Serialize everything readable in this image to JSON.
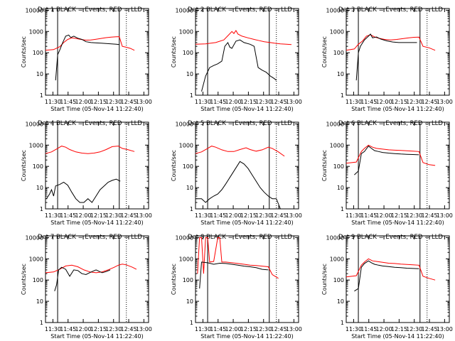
{
  "chart_data": {
    "type": "line",
    "xlabel": "Start Time (05-Nov-14 11:22:40)",
    "ylabel": "Counts/sec",
    "yscale": "log",
    "ylim": [
      1,
      12000
    ],
    "xlim_minutes_since_1122_40": [
      0,
      102
    ],
    "x_ticks": [
      "11:30",
      "11:45",
      "12:00",
      "12:15",
      "12:30",
      "12:45",
      "13:00"
    ],
    "y_ticks": [
      "1",
      "10",
      "100",
      "1000",
      "10000"
    ],
    "series_colors": {
      "events": "#000000",
      "lld": "#ff0000"
    },
    "legend": "title",
    "panels": [
      {
        "title": "Det 1  BLACK = Events, RED = LLD",
        "lld": [
          [
            0,
            130
          ],
          [
            8,
            140
          ],
          [
            14,
            190
          ],
          [
            18,
            300
          ],
          [
            22,
            420
          ],
          [
            26,
            500
          ],
          [
            30,
            470
          ],
          [
            35,
            420
          ],
          [
            40,
            390
          ],
          [
            45,
            400
          ],
          [
            50,
            430
          ],
          [
            55,
            470
          ],
          [
            60,
            510
          ],
          [
            65,
            540
          ],
          [
            70,
            560
          ],
          [
            73,
            570
          ],
          [
            76,
            200
          ],
          [
            80,
            180
          ],
          [
            84,
            160
          ],
          [
            88,
            130
          ]
        ],
        "events": [
          [
            10,
            5
          ],
          [
            12,
            80
          ],
          [
            14,
            130
          ],
          [
            17,
            300
          ],
          [
            20,
            600
          ],
          [
            23,
            680
          ],
          [
            25,
            520
          ],
          [
            28,
            600
          ],
          [
            32,
            480
          ],
          [
            36,
            420
          ],
          [
            40,
            330
          ],
          [
            45,
            300
          ],
          [
            50,
            290
          ],
          [
            55,
            280
          ],
          [
            60,
            270
          ],
          [
            65,
            260
          ],
          [
            70,
            250
          ],
          [
            73,
            240
          ]
        ]
      },
      {
        "title": "Det 2  BLACK = Events, RED = LLD",
        "lld": [
          [
            0,
            250
          ],
          [
            10,
            260
          ],
          [
            20,
            300
          ],
          [
            28,
            400
          ],
          [
            33,
            700
          ],
          [
            36,
            1000
          ],
          [
            38,
            800
          ],
          [
            40,
            1100
          ],
          [
            42,
            750
          ],
          [
            46,
            600
          ],
          [
            52,
            500
          ],
          [
            58,
            420
          ],
          [
            62,
            380
          ],
          [
            68,
            330
          ],
          [
            74,
            300
          ],
          [
            78,
            280
          ],
          [
            84,
            260
          ],
          [
            90,
            250
          ],
          [
            95,
            240
          ]
        ],
        "events": [
          [
            6,
            1.5
          ],
          [
            10,
            8
          ],
          [
            14,
            20
          ],
          [
            18,
            25
          ],
          [
            22,
            30
          ],
          [
            26,
            40
          ],
          [
            29,
            200
          ],
          [
            32,
            300
          ],
          [
            34,
            180
          ],
          [
            36,
            160
          ],
          [
            40,
            350
          ],
          [
            44,
            400
          ],
          [
            48,
            300
          ],
          [
            54,
            250
          ],
          [
            58,
            200
          ],
          [
            62,
            20
          ],
          [
            66,
            15
          ],
          [
            70,
            12
          ],
          [
            74,
            8
          ],
          [
            78,
            6
          ],
          [
            80,
            5
          ]
        ]
      },
      {
        "title": "Det 3  BLACK = Events, RED = LLD",
        "lld": [
          [
            0,
            130
          ],
          [
            8,
            150
          ],
          [
            12,
            250
          ],
          [
            16,
            350
          ],
          [
            20,
            600
          ],
          [
            24,
            700
          ],
          [
            28,
            550
          ],
          [
            32,
            480
          ],
          [
            38,
            420
          ],
          [
            44,
            400
          ],
          [
            50,
            420
          ],
          [
            56,
            460
          ],
          [
            62,
            500
          ],
          [
            67,
            530
          ],
          [
            72,
            540
          ],
          [
            76,
            200
          ],
          [
            82,
            170
          ],
          [
            88,
            130
          ]
        ],
        "events": [
          [
            10,
            5
          ],
          [
            12,
            100
          ],
          [
            14,
            200
          ],
          [
            18,
            400
          ],
          [
            22,
            600
          ],
          [
            24,
            750
          ],
          [
            26,
            500
          ],
          [
            30,
            550
          ],
          [
            34,
            440
          ],
          [
            40,
            360
          ],
          [
            46,
            320
          ],
          [
            52,
            300
          ],
          [
            58,
            300
          ],
          [
            64,
            300
          ],
          [
            70,
            300
          ]
        ]
      },
      {
        "title": "Det 4  BLACK = Events, RED = LLD",
        "lld": [
          [
            0,
            400
          ],
          [
            6,
            480
          ],
          [
            12,
            700
          ],
          [
            16,
            900
          ],
          [
            20,
            800
          ],
          [
            24,
            620
          ],
          [
            30,
            480
          ],
          [
            36,
            420
          ],
          [
            42,
            400
          ],
          [
            48,
            420
          ],
          [
            54,
            480
          ],
          [
            60,
            620
          ],
          [
            66,
            850
          ],
          [
            72,
            900
          ],
          [
            76,
            700
          ],
          [
            82,
            600
          ],
          [
            88,
            500
          ]
        ],
        "events": [
          [
            1,
            3
          ],
          [
            4,
            5
          ],
          [
            6,
            8
          ],
          [
            8,
            4
          ],
          [
            10,
            12
          ],
          [
            14,
            14
          ],
          [
            18,
            18
          ],
          [
            22,
            13
          ],
          [
            26,
            6
          ],
          [
            30,
            3
          ],
          [
            34,
            2
          ],
          [
            38,
            2
          ],
          [
            42,
            3
          ],
          [
            46,
            2
          ],
          [
            50,
            4
          ],
          [
            54,
            8
          ],
          [
            58,
            12
          ],
          [
            62,
            18
          ],
          [
            66,
            22
          ],
          [
            70,
            25
          ],
          [
            74,
            20
          ]
        ]
      },
      {
        "title": "Det 5  BLACK = Events, RED = LLD",
        "lld": [
          [
            0,
            400
          ],
          [
            6,
            480
          ],
          [
            12,
            700
          ],
          [
            16,
            900
          ],
          [
            20,
            800
          ],
          [
            26,
            600
          ],
          [
            32,
            500
          ],
          [
            38,
            500
          ],
          [
            44,
            620
          ],
          [
            50,
            750
          ],
          [
            54,
            620
          ],
          [
            60,
            520
          ],
          [
            66,
            600
          ],
          [
            72,
            800
          ],
          [
            76,
            700
          ],
          [
            82,
            480
          ],
          [
            88,
            300
          ]
        ],
        "events": [
          [
            1,
            3
          ],
          [
            6,
            3
          ],
          [
            10,
            2
          ],
          [
            14,
            3
          ],
          [
            18,
            4
          ],
          [
            22,
            5
          ],
          [
            26,
            8
          ],
          [
            30,
            15
          ],
          [
            34,
            30
          ],
          [
            38,
            60
          ],
          [
            42,
            120
          ],
          [
            44,
            170
          ],
          [
            48,
            130
          ],
          [
            52,
            80
          ],
          [
            56,
            40
          ],
          [
            60,
            20
          ],
          [
            64,
            10
          ],
          [
            68,
            6
          ],
          [
            72,
            4
          ],
          [
            76,
            3
          ],
          [
            80,
            3
          ],
          [
            84,
            1
          ]
        ]
      },
      {
        "title": "Det 6  BLACK = Events, RED = LLD",
        "lld": [
          [
            0,
            140
          ],
          [
            10,
            160
          ],
          [
            15,
            500
          ],
          [
            18,
            700
          ],
          [
            22,
            1000
          ],
          [
            26,
            800
          ],
          [
            30,
            700
          ],
          [
            36,
            650
          ],
          [
            42,
            600
          ],
          [
            48,
            580
          ],
          [
            54,
            560
          ],
          [
            60,
            540
          ],
          [
            66,
            520
          ],
          [
            72,
            500
          ],
          [
            76,
            150
          ],
          [
            82,
            120
          ],
          [
            88,
            110
          ]
        ],
        "events": [
          [
            8,
            40
          ],
          [
            12,
            60
          ],
          [
            15,
            400
          ],
          [
            18,
            500
          ],
          [
            22,
            900
          ],
          [
            25,
            700
          ],
          [
            28,
            550
          ],
          [
            32,
            500
          ],
          [
            36,
            450
          ],
          [
            42,
            420
          ],
          [
            48,
            400
          ],
          [
            54,
            380
          ],
          [
            60,
            370
          ],
          [
            66,
            360
          ],
          [
            72,
            350
          ]
        ]
      },
      {
        "title": "Det 7  BLACK = Events, RED = LLD",
        "lld": [
          [
            0,
            220
          ],
          [
            8,
            240
          ],
          [
            14,
            320
          ],
          [
            20,
            460
          ],
          [
            26,
            500
          ],
          [
            32,
            420
          ],
          [
            38,
            300
          ],
          [
            44,
            240
          ],
          [
            50,
            220
          ],
          [
            56,
            240
          ],
          [
            62,
            300
          ],
          [
            68,
            400
          ],
          [
            72,
            500
          ],
          [
            76,
            560
          ],
          [
            80,
            520
          ],
          [
            86,
            400
          ],
          [
            90,
            320
          ]
        ],
        "events": [
          [
            9,
            30
          ],
          [
            11,
            60
          ],
          [
            13,
            300
          ],
          [
            16,
            400
          ],
          [
            20,
            320
          ],
          [
            24,
            150
          ],
          [
            28,
            300
          ],
          [
            32,
            280
          ],
          [
            36,
            200
          ],
          [
            40,
            180
          ],
          [
            46,
            250
          ],
          [
            50,
            300
          ],
          [
            56,
            220
          ],
          [
            60,
            250
          ],
          [
            64,
            300
          ]
        ]
      },
      {
        "title": "Det 8  BLACK = Events, RED = LLD",
        "lld": [
          [
            2,
            200
          ],
          [
            4,
            10000
          ],
          [
            6,
            10000
          ],
          [
            8,
            200
          ],
          [
            10,
            10000
          ],
          [
            12,
            10000
          ],
          [
            14,
            700
          ],
          [
            18,
            750
          ],
          [
            22,
            10000
          ],
          [
            24,
            10000
          ],
          [
            26,
            700
          ],
          [
            30,
            700
          ],
          [
            36,
            650
          ],
          [
            42,
            600
          ],
          [
            48,
            550
          ],
          [
            54,
            500
          ],
          [
            60,
            480
          ],
          [
            66,
            450
          ],
          [
            72,
            420
          ],
          [
            76,
            180
          ],
          [
            82,
            120
          ]
        ],
        "events": [
          [
            4,
            40
          ],
          [
            6,
            700
          ],
          [
            12,
            650
          ],
          [
            18,
            550
          ],
          [
            24,
            620
          ],
          [
            30,
            600
          ],
          [
            36,
            550
          ],
          [
            42,
            500
          ],
          [
            48,
            450
          ],
          [
            54,
            420
          ],
          [
            60,
            380
          ],
          [
            66,
            320
          ],
          [
            72,
            300
          ]
        ]
      },
      {
        "title": "Det 9  BLACK = Events, RED = LLD",
        "lld": [
          [
            0,
            140
          ],
          [
            10,
            160
          ],
          [
            15,
            500
          ],
          [
            18,
            700
          ],
          [
            22,
            1000
          ],
          [
            26,
            800
          ],
          [
            30,
            750
          ],
          [
            36,
            680
          ],
          [
            42,
            620
          ],
          [
            48,
            600
          ],
          [
            54,
            560
          ],
          [
            60,
            540
          ],
          [
            66,
            520
          ],
          [
            72,
            500
          ],
          [
            76,
            150
          ],
          [
            82,
            120
          ],
          [
            88,
            100
          ]
        ],
        "events": [
          [
            8,
            30
          ],
          [
            12,
            40
          ],
          [
            15,
            400
          ],
          [
            18,
            600
          ],
          [
            22,
            800
          ],
          [
            25,
            650
          ],
          [
            28,
            550
          ],
          [
            32,
            500
          ],
          [
            36,
            460
          ],
          [
            42,
            430
          ],
          [
            48,
            400
          ],
          [
            54,
            380
          ],
          [
            60,
            360
          ],
          [
            66,
            350
          ],
          [
            72,
            340
          ]
        ]
      }
    ]
  }
}
